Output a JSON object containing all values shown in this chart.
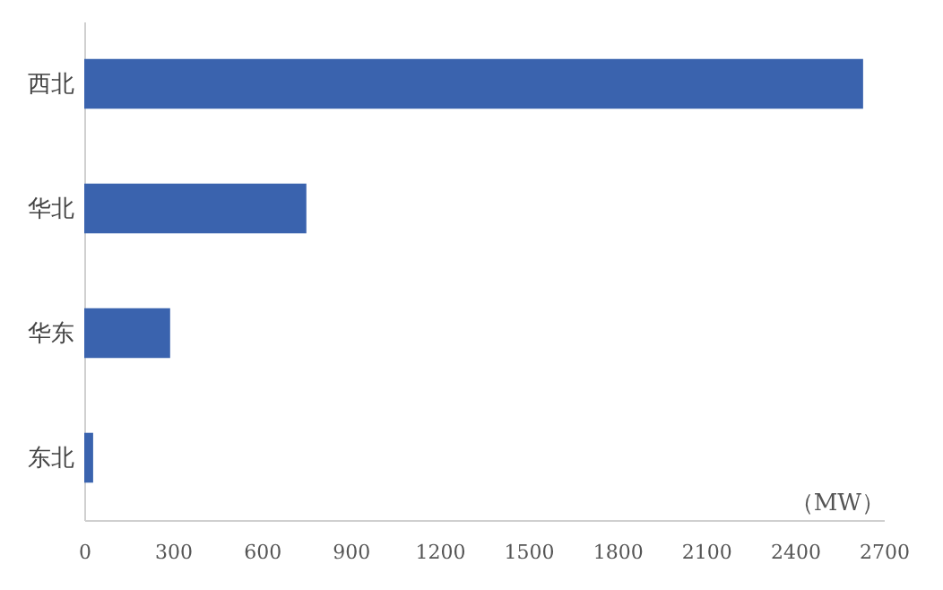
{
  "chart_data": {
    "type": "bar",
    "orientation": "horizontal",
    "xlabel": "（MW）",
    "categories": [
      "西北",
      "华北",
      "华东",
      "东北"
    ],
    "values": [
      2630,
      750,
      290,
      30
    ],
    "color": "#3a63ae",
    "xlim": [
      0,
      2700
    ],
    "xticks": [
      0,
      300,
      600,
      900,
      1200,
      1500,
      1800,
      2100,
      2400,
      2700
    ],
    "grid": false
  }
}
